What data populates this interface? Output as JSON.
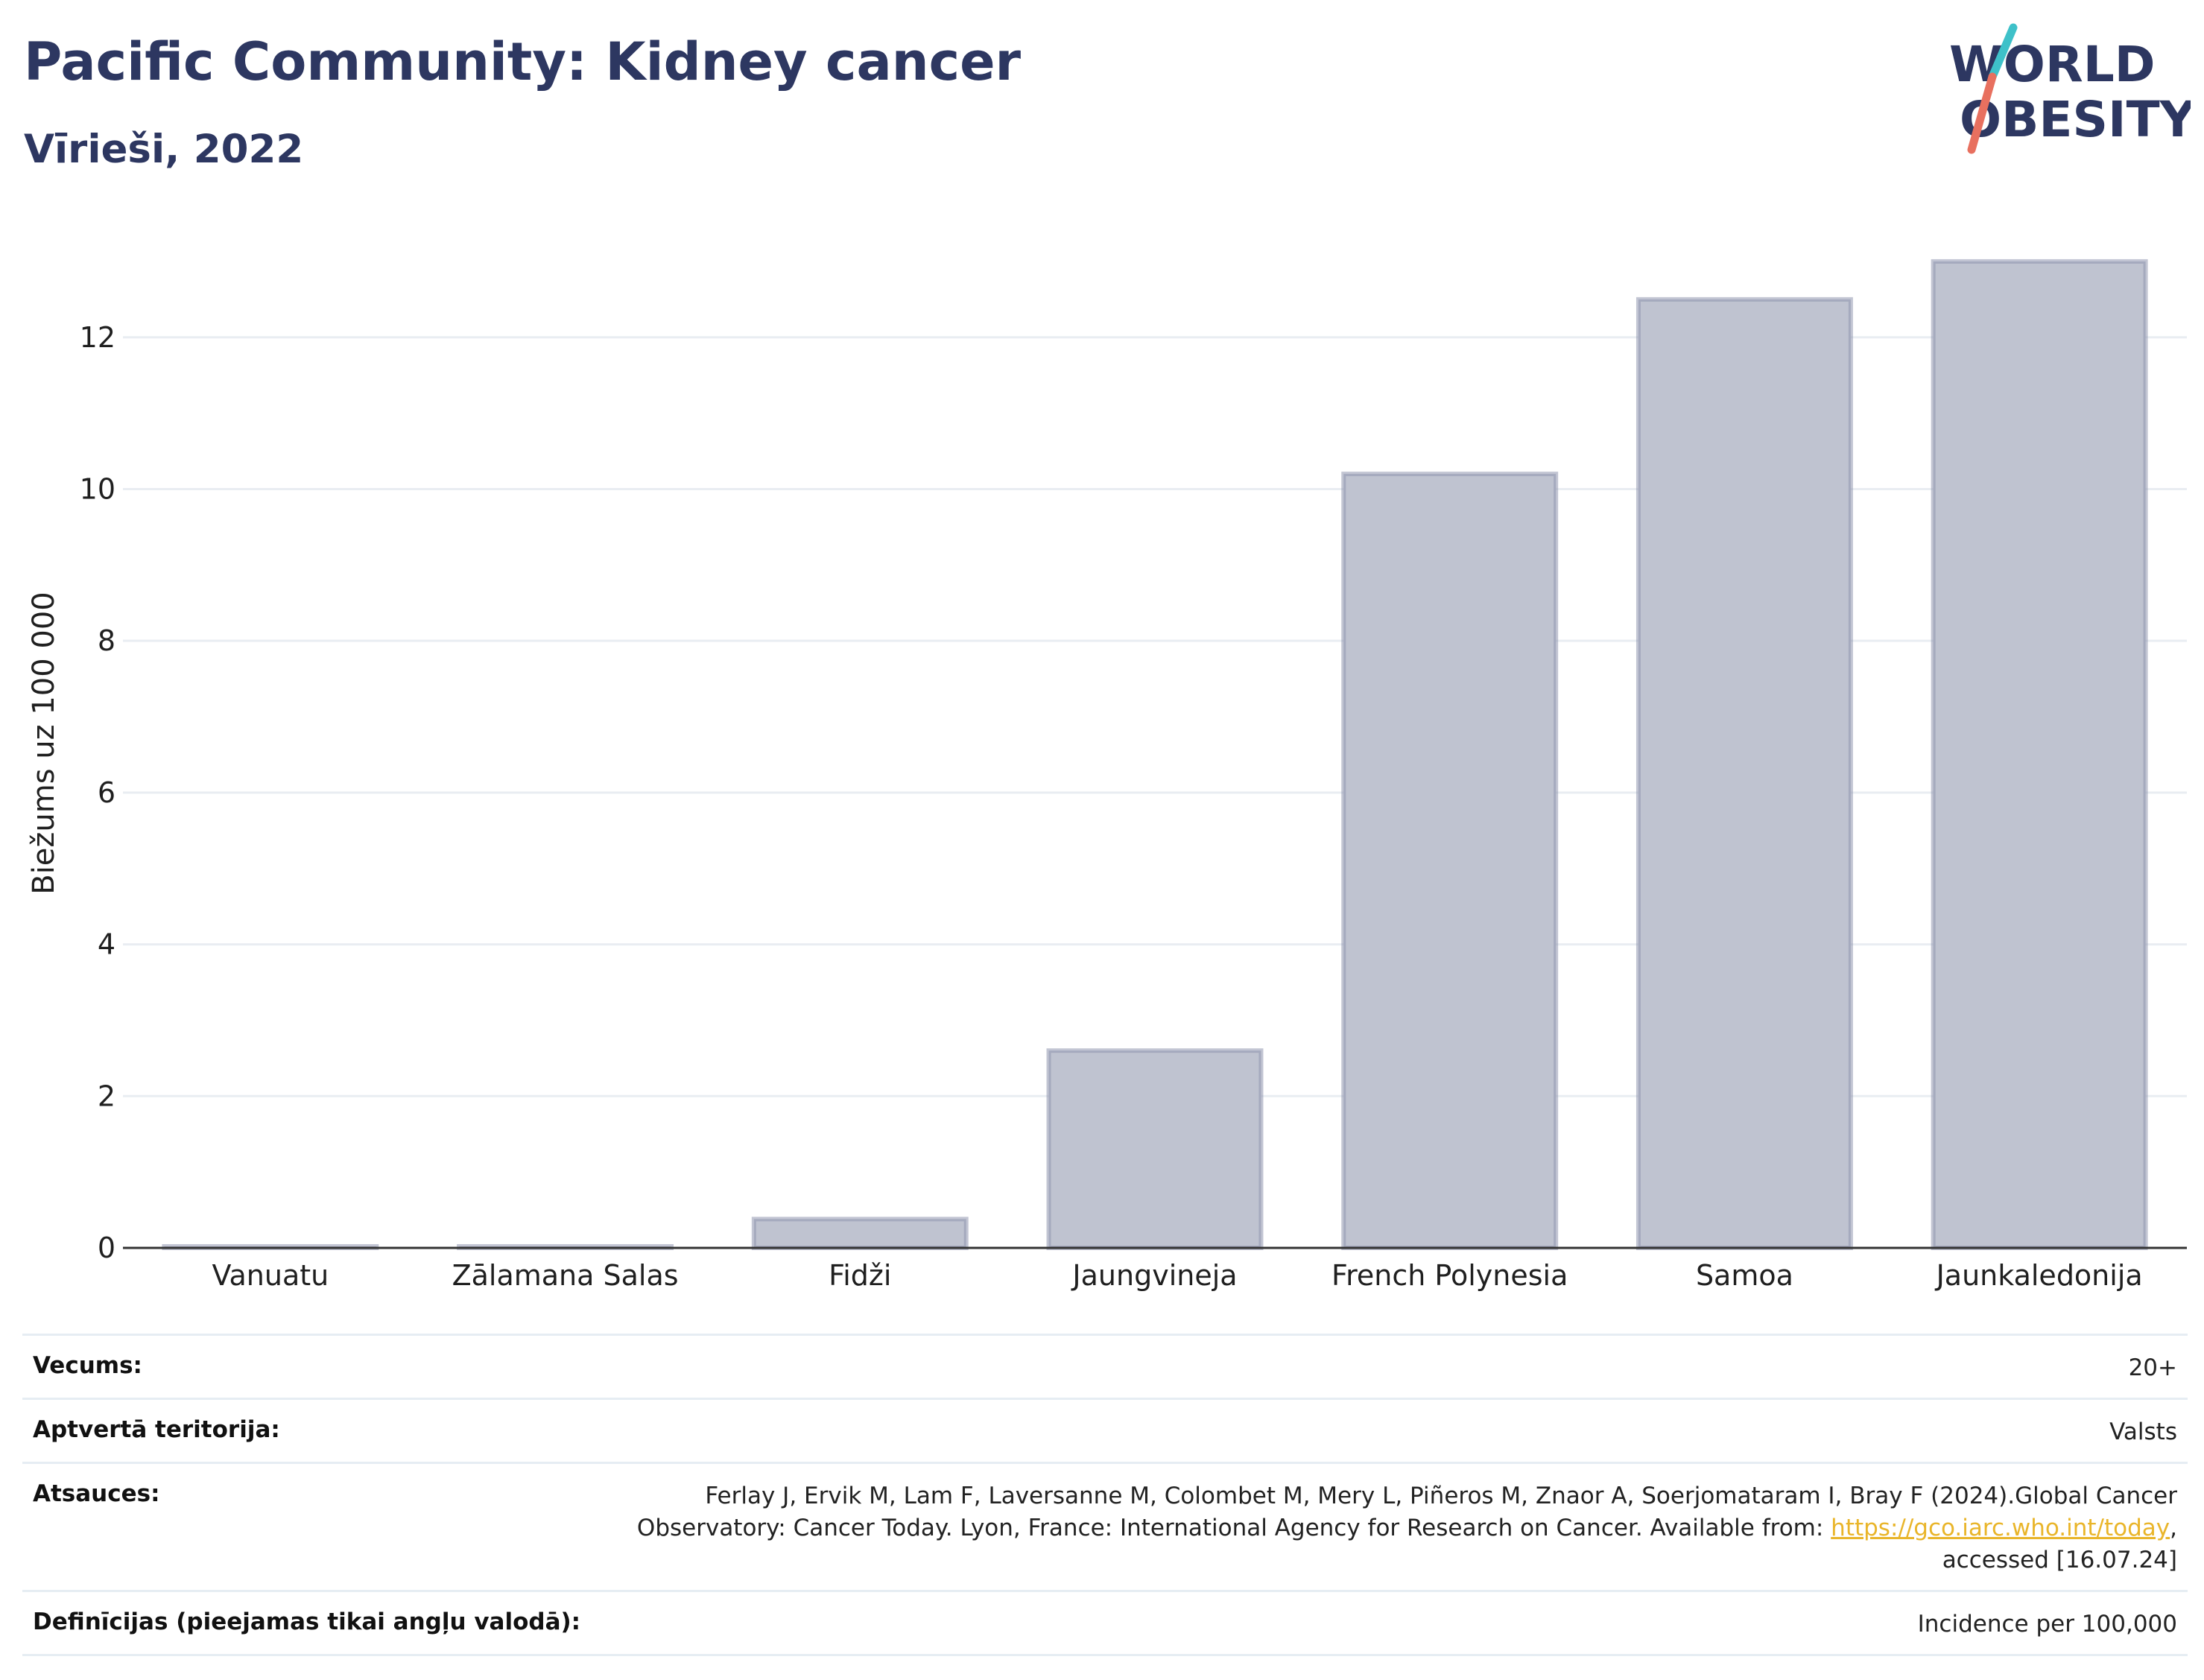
{
  "header": {
    "title": "Pacific Community: Kidney cancer",
    "subtitle": "Vīrieši, 2022"
  },
  "logo": {
    "line1": "WORLD",
    "line2": "OBESITY",
    "text_color": "#2d3761",
    "slash_colors": [
      "#3ec1c9",
      "#e8705f"
    ]
  },
  "chart_data": {
    "type": "bar",
    "categories": [
      "Vanuatu",
      "Zālamana Salas",
      "Fidži",
      "Jaungvineja",
      "French Polynesia",
      "Samoa",
      "Jaunkaledonija"
    ],
    "values": [
      0.02,
      0.02,
      0.38,
      2.6,
      10.2,
      12.5,
      13.0
    ],
    "xlabel": "",
    "ylabel": "Biežums uz 100 000",
    "ylim": [
      0,
      13.5
    ],
    "yticks": [
      0,
      2,
      4,
      6,
      8,
      10,
      12
    ],
    "grid": true,
    "legend": "none",
    "bar_fill": "#bfc3d0",
    "bar_stroke": "#8f96ae"
  },
  "info": {
    "rows": [
      {
        "label": "Vecums:",
        "value": "20+"
      },
      {
        "label": "Aptvertā teritorija:",
        "value": "Valsts"
      }
    ],
    "reference": {
      "label": "Atsauces:",
      "line1": "Ferlay J, Ervik M, Lam F, Laversanne M, Colombet M, Mery L, Piñeros M, Znaor A, Soerjomataram I, Bray F (2024).Global Cancer",
      "line2_before": "Observatory: Cancer Today. Lyon, France: International Agency for Research on Cancer. Available from: ",
      "link": "https://gco.iarc.who.int/today",
      "line2_after": ",",
      "line3": "accessed [16.07.24]"
    },
    "definition": {
      "label": "Definīcijas (pieejamas tikai angļu valodā):",
      "value": "Incidence per 100,000"
    }
  }
}
